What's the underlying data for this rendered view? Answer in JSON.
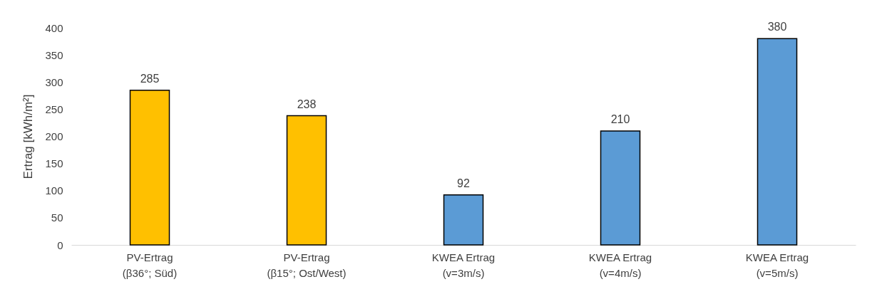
{
  "chart_data": {
    "type": "bar",
    "ylabel": "Ertrag [kWh/m²]",
    "categories": [
      "PV-Ertrag\n(β36°; Süd)",
      "PV-Ertrag\n(β15°; Ost/West)",
      "KWEA Ertrag\n(v=3m/s)",
      "KWEA Ertrag\n(v=4m/s)",
      "KWEA Ertrag\n(v=5m/s)"
    ],
    "values": [
      285,
      238,
      92,
      210,
      380
    ],
    "colors": [
      "#ffc000",
      "#ffc000",
      "#5b9bd5",
      "#5b9bd5",
      "#5b9bd5"
    ],
    "ylim": [
      0,
      400
    ],
    "yticks": [
      0,
      50,
      100,
      150,
      200,
      250,
      300,
      350,
      400
    ],
    "data_labels": true
  }
}
